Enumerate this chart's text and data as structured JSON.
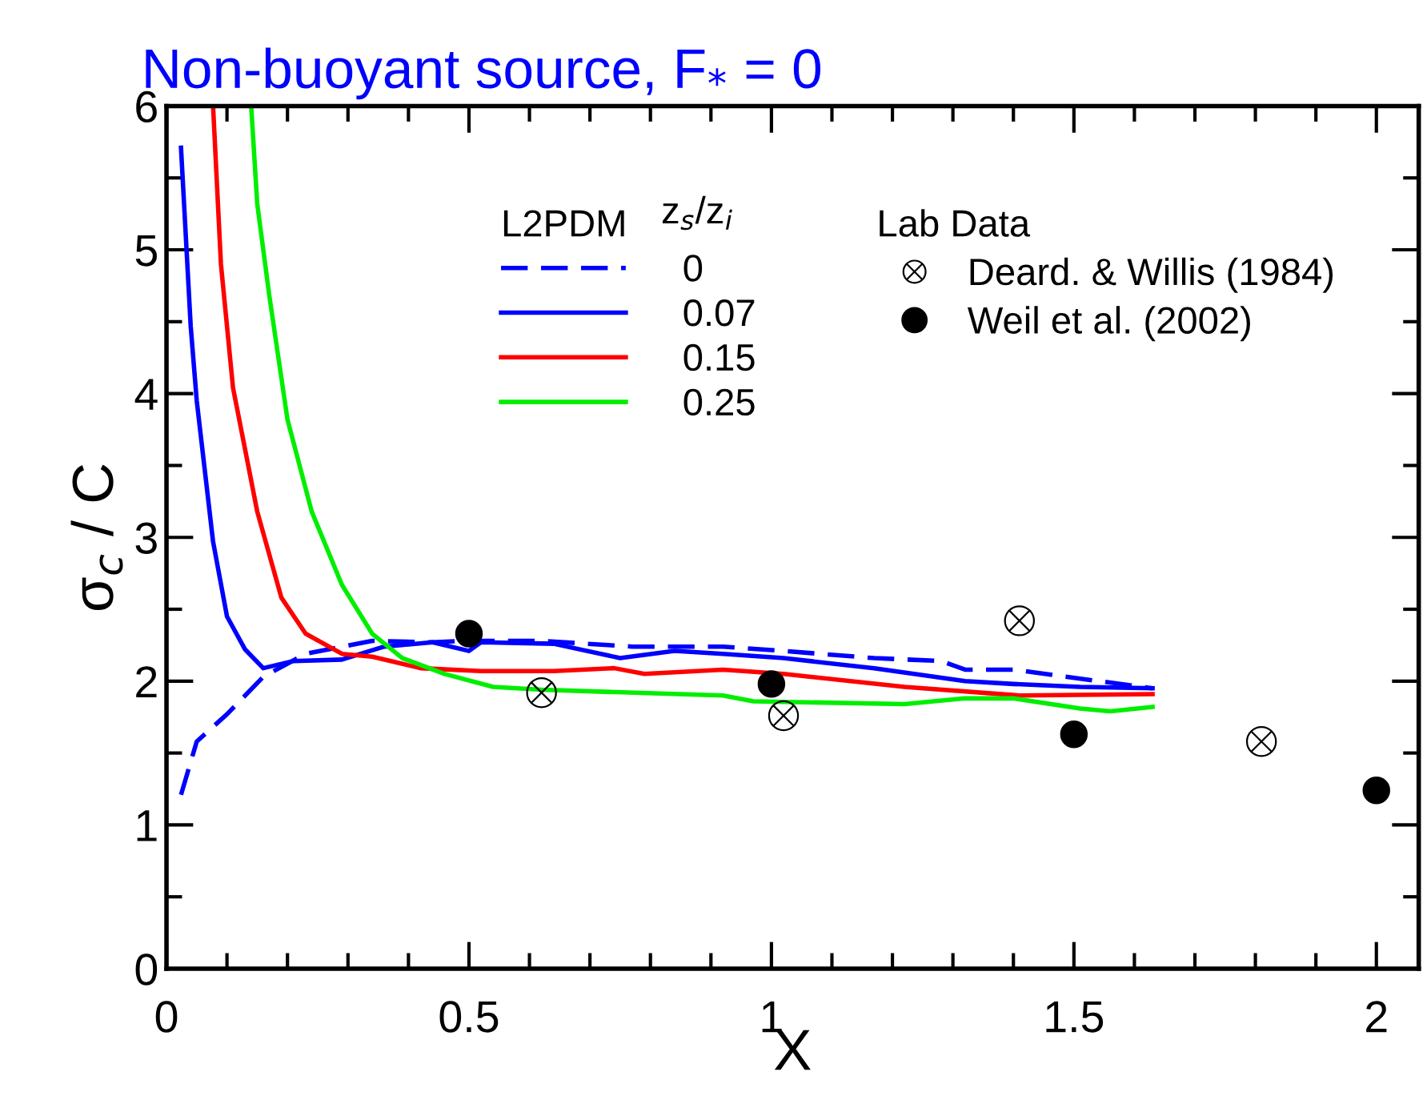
{
  "chart_data": {
    "type": "line",
    "title": "Non-buoyant source, F$_{*}$ = 0",
    "xlabel": "X",
    "ylabel": "σ$_{c}$ / C",
    "legend_title": "L2PDM",
    "annotations": [
      "z$_{s}$/z$_{i}$",
      "Lab Data"
    ],
    "xlim": [
      0,
      2.07
    ],
    "ylim": [
      0,
      6
    ],
    "xticks": [
      0,
      0.5,
      1,
      1.5,
      2
    ],
    "yticks": [
      0,
      1,
      2,
      3,
      4,
      5,
      6
    ],
    "legend": "top right",
    "grid": false,
    "series": [
      {
        "name": "0",
        "color": "#0000ff",
        "line_style": "dashed",
        "x": [
          0.024,
          0.05,
          0.1,
          0.16,
          0.23,
          0.34,
          0.44,
          0.49,
          0.52,
          0.62,
          0.77,
          0.92,
          1.02,
          1.17,
          1.28,
          1.32,
          1.4,
          1.63
        ],
        "values": [
          1.21,
          1.58,
          1.77,
          2.03,
          2.19,
          2.28,
          2.27,
          2.28,
          2.28,
          2.28,
          2.24,
          2.24,
          2.21,
          2.16,
          2.14,
          2.08,
          2.08,
          1.95
        ]
      },
      {
        "name": "0.07",
        "color": "#0000ff",
        "line_style": "solid",
        "x": [
          0.024,
          0.04,
          0.05,
          0.077,
          0.1,
          0.13,
          0.16,
          0.21,
          0.29,
          0.36,
          0.44,
          0.5,
          0.52,
          0.64,
          0.75,
          0.84,
          0.92,
          1.02,
          1.17,
          1.32,
          1.4,
          1.51,
          1.63
        ],
        "values": [
          5.71,
          4.47,
          3.95,
          2.97,
          2.45,
          2.22,
          2.09,
          2.14,
          2.15,
          2.24,
          2.27,
          2.21,
          2.27,
          2.26,
          2.16,
          2.21,
          2.19,
          2.16,
          2.09,
          2.0,
          1.98,
          1.96,
          1.95
        ]
      },
      {
        "name": "0.15",
        "color": "#ff0000",
        "line_style": "solid",
        "x": [
          0.077,
          0.09,
          0.11,
          0.15,
          0.19,
          0.23,
          0.29,
          0.34,
          0.42,
          0.52,
          0.64,
          0.74,
          0.79,
          0.92,
          1.02,
          1.22,
          1.41,
          1.63
        ],
        "values": [
          6.0,
          4.9,
          4.04,
          3.18,
          2.58,
          2.33,
          2.19,
          2.17,
          2.09,
          2.07,
          2.07,
          2.09,
          2.05,
          2.08,
          2.05,
          1.96,
          1.9,
          1.91
        ]
      },
      {
        "name": "0.25",
        "color": "#00ee00",
        "line_style": "solid",
        "x": [
          0.14,
          0.15,
          0.17,
          0.2,
          0.24,
          0.29,
          0.34,
          0.39,
          0.46,
          0.54,
          0.62,
          0.92,
          0.97,
          1.22,
          1.32,
          1.4,
          1.51,
          1.56,
          1.63
        ],
        "values": [
          6.0,
          5.32,
          4.68,
          3.82,
          3.18,
          2.67,
          2.33,
          2.16,
          2.05,
          1.96,
          1.94,
          1.9,
          1.86,
          1.84,
          1.88,
          1.88,
          1.81,
          1.79,
          1.82
        ]
      },
      {
        "name": "Deard. & Willis (1984)",
        "type": "scatter",
        "marker": "cross",
        "color": "#000000",
        "x": [
          0.62,
          1.02,
          1.41,
          1.81
        ],
        "values": [
          1.92,
          1.76,
          2.42,
          1.58
        ]
      },
      {
        "name": "Weil et al. (2002)",
        "type": "scatter",
        "marker": "circle",
        "color": "#000000",
        "x": [
          0.5,
          1.0,
          1.5,
          2.0
        ],
        "values": [
          2.33,
          1.98,
          1.63,
          1.24
        ]
      }
    ]
  }
}
